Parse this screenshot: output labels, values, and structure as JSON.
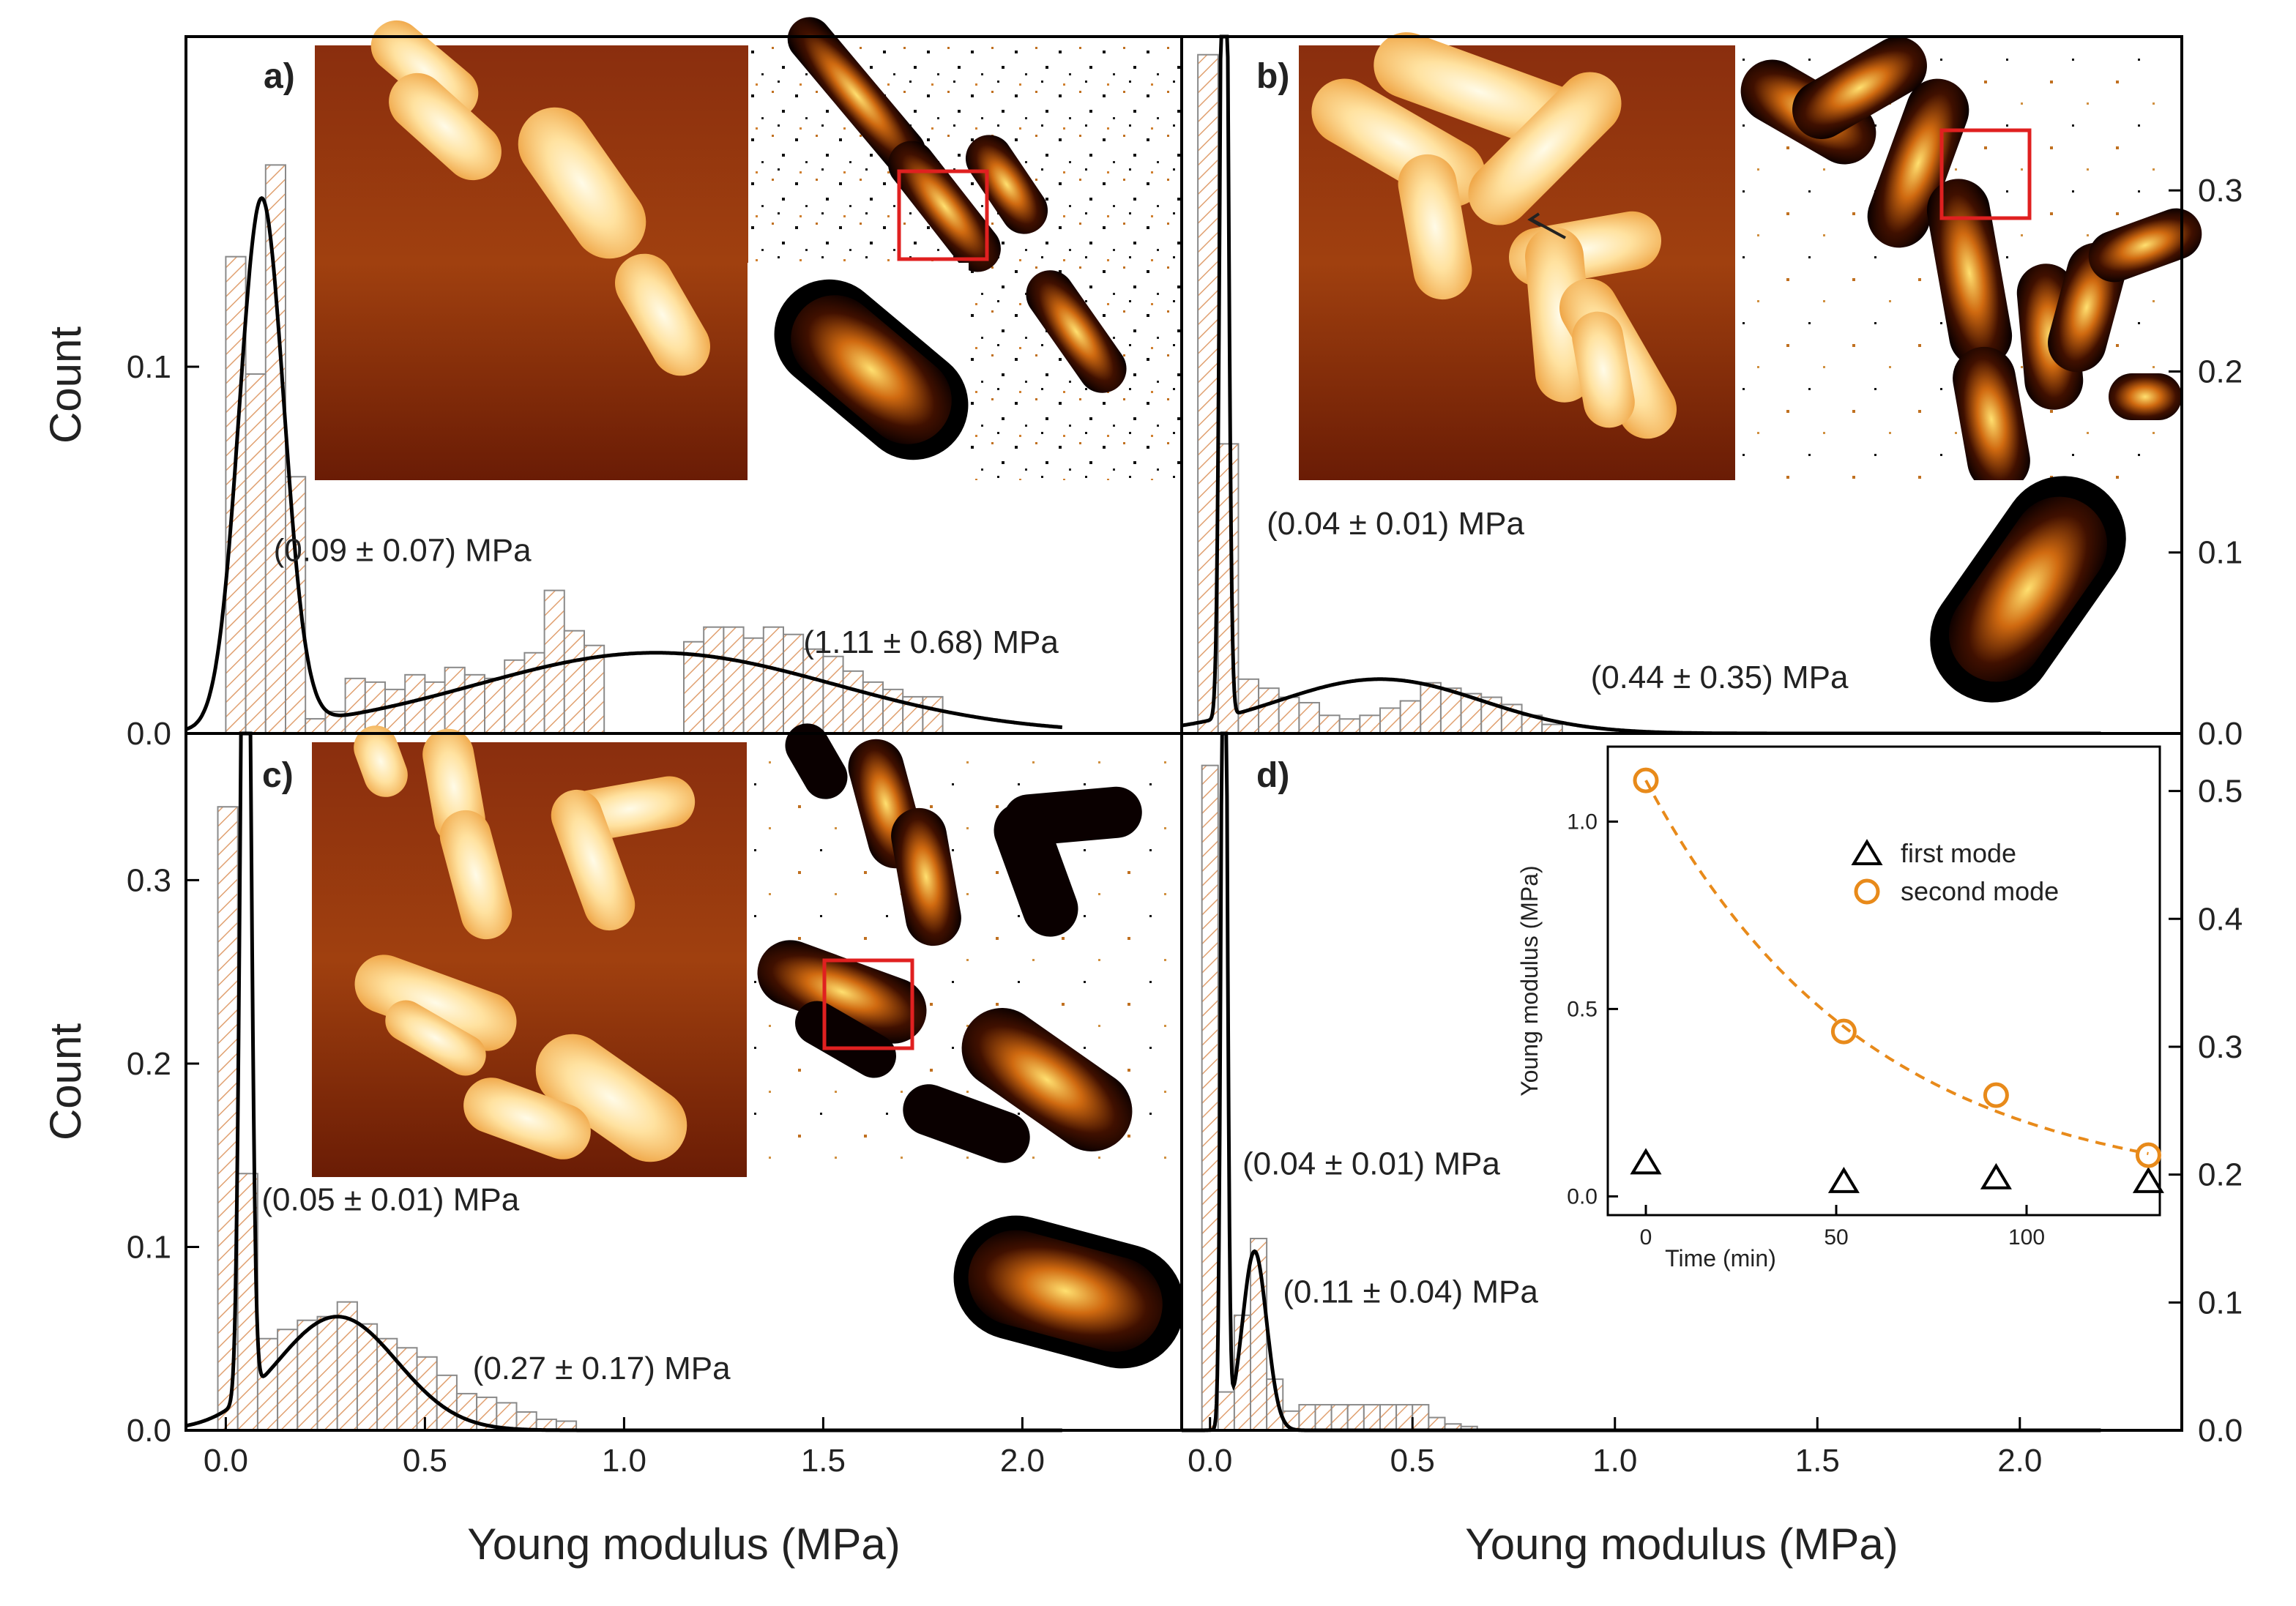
{
  "figure": {
    "xlabel": "Young modulus (MPa)",
    "ylabel": "Count"
  },
  "chart_data": [
    {
      "id": "a",
      "panel_label": "a)",
      "type": "bar",
      "title": "",
      "xlabel": "",
      "ylabel": "Count",
      "xlim": [
        -0.1,
        2.4
      ],
      "ylim": [
        0,
        0.19
      ],
      "yticks": [
        0.0,
        0.1
      ],
      "ytick_labels": [
        "0.0",
        "0.1"
      ],
      "ytick_side": "left",
      "xticks": [],
      "bin_width": 0.05,
      "bins": [
        0,
        0.05,
        0.1,
        0.15,
        0.2,
        0.25,
        0.3,
        0.35,
        0.4,
        0.45,
        0.5,
        0.55,
        0.6,
        0.65,
        0.7,
        0.75,
        0.8,
        0.85,
        0.9,
        0.95,
        1.0,
        1.05,
        1.1,
        1.15,
        1.2,
        1.25,
        1.3,
        1.35,
        1.4,
        1.45,
        1.5,
        1.55,
        1.6,
        1.65,
        1.7,
        1.75
      ],
      "values": [
        0.13,
        0.098,
        0.155,
        0.07,
        0.004,
        0.006,
        0.015,
        0.014,
        0.012,
        0.016,
        0.014,
        0.018,
        0.016,
        0.015,
        0.02,
        0.022,
        0.039,
        0.028,
        0.024,
        0.0,
        0.0,
        0.0,
        0.0,
        0.025,
        0.029,
        0.029,
        0.026,
        0.029,
        0.027,
        0.023,
        0.021,
        0.017,
        0.014,
        0.012,
        0.01,
        0.01
      ],
      "fit": [
        {
          "mu": 0.09,
          "sigma": 0.056,
          "amp": 0.144
        },
        {
          "mu": 1.08,
          "sigma": 0.45,
          "amp": 0.022
        }
      ],
      "annotations": [
        {
          "text": "(0.09 ± 0.07) MPa",
          "x": 0.12,
          "y": 0.047
        },
        {
          "text": "(1.11 ± 0.68) MPa",
          "x": 1.45,
          "y": 0.022
        }
      ]
    },
    {
      "id": "b",
      "panel_label": "b)",
      "type": "bar",
      "title": "",
      "xlabel": "",
      "ylabel": "",
      "xlim": [
        -0.07,
        2.4
      ],
      "ylim": [
        0,
        0.385
      ],
      "yticks": [
        0.0,
        0.1,
        0.2,
        0.3
      ],
      "ytick_labels": [
        "0.0",
        "0.1",
        "0.2",
        "0.3"
      ],
      "ytick_side": "right",
      "xticks": [],
      "bin_width": 0.05,
      "bins": [
        -0.03,
        0.02,
        0.07,
        0.12,
        0.17,
        0.22,
        0.27,
        0.32,
        0.37,
        0.42,
        0.47,
        0.52,
        0.57,
        0.62,
        0.67,
        0.72,
        0.77,
        0.82
      ],
      "values": [
        0.375,
        0.16,
        0.03,
        0.025,
        0.02,
        0.017,
        0.01,
        0.008,
        0.01,
        0.014,
        0.018,
        0.028,
        0.025,
        0.022,
        0.02,
        0.016,
        0.01,
        0.005
      ],
      "fit": [
        {
          "mu": 0.035,
          "sigma": 0.009,
          "amp": 0.6
        },
        {
          "mu": 0.42,
          "sigma": 0.25,
          "amp": 0.03
        }
      ],
      "annotations": [
        {
          "text": "(0.04 ± 0.01) MPa",
          "x": 0.14,
          "y": 0.11
        },
        {
          "text": "(0.44 ± 0.35) MPa",
          "x": 0.94,
          "y": 0.025
        }
      ]
    },
    {
      "id": "c",
      "panel_label": "c)",
      "type": "bar",
      "title": "",
      "xlabel": "Young modulus (MPa)",
      "ylabel": "Count",
      "xlim": [
        -0.1,
        2.4
      ],
      "ylim": [
        0,
        0.38
      ],
      "yticks": [
        0.0,
        0.1,
        0.2,
        0.3
      ],
      "ytick_labels": [
        "0.0",
        "0.1",
        "0.2",
        "0.3"
      ],
      "ytick_side": "left",
      "xticks": [
        0.0,
        0.5,
        1.0,
        1.5,
        2.0
      ],
      "xtick_labels": [
        "0.0",
        "0.5",
        "1.0",
        "1.5",
        "2.0"
      ],
      "bin_width": 0.05,
      "bins": [
        -0.02,
        0.03,
        0.08,
        0.13,
        0.18,
        0.23,
        0.28,
        0.33,
        0.38,
        0.43,
        0.48,
        0.53,
        0.58,
        0.63,
        0.68,
        0.73,
        0.78,
        0.83
      ],
      "values": [
        0.34,
        0.14,
        0.05,
        0.055,
        0.06,
        0.062,
        0.07,
        0.058,
        0.05,
        0.045,
        0.04,
        0.03,
        0.02,
        0.018,
        0.015,
        0.01,
        0.006,
        0.005
      ],
      "fit": [
        {
          "mu": 0.05,
          "sigma": 0.012,
          "amp": 0.6
        },
        {
          "mu": 0.28,
          "sigma": 0.15,
          "amp": 0.062
        }
      ],
      "annotations": [
        {
          "text": "(0.05 ± 0.01) MPa",
          "x": 0.09,
          "y": 0.12
        },
        {
          "text": "(0.27 ± 0.17) MPa",
          "x": 0.62,
          "y": 0.028
        }
      ]
    },
    {
      "id": "d",
      "panel_label": "d)",
      "type": "bar",
      "title": "",
      "xlabel": "Young modulus (MPa)",
      "ylabel": "",
      "xlim": [
        -0.07,
        2.4
      ],
      "ylim": [
        0,
        0.545
      ],
      "yticks": [
        0.0,
        0.1,
        0.2,
        0.3,
        0.4,
        0.5
      ],
      "ytick_labels": [
        "0.0",
        "0.1",
        "0.2",
        "0.3",
        "0.4",
        "0.5"
      ],
      "ytick_side": "right",
      "xticks": [
        0.0,
        0.5,
        1.0,
        1.5,
        2.0
      ],
      "xtick_labels": [
        "0.0",
        "0.5",
        "1.0",
        "1.5",
        "2.0"
      ],
      "bin_width": 0.04,
      "bins": [
        -0.02,
        0.02,
        0.06,
        0.1,
        0.14,
        0.18,
        0.22,
        0.26,
        0.3,
        0.34,
        0.38,
        0.42,
        0.46,
        0.5,
        0.54,
        0.58,
        0.62
      ],
      "values": [
        0.52,
        0.03,
        0.09,
        0.15,
        0.04,
        0.015,
        0.02,
        0.02,
        0.02,
        0.02,
        0.02,
        0.02,
        0.02,
        0.02,
        0.01,
        0.005,
        0.003
      ],
      "fit": [
        {
          "mu": 0.035,
          "sigma": 0.007,
          "amp": 0.8
        },
        {
          "mu": 0.11,
          "sigma": 0.03,
          "amp": 0.14
        }
      ],
      "annotations": [
        {
          "text": "(0.04 ± 0.01) MPa",
          "x": 0.08,
          "y": 0.2
        },
        {
          "text": "(0.11 ± 0.04) MPa",
          "x": 0.18,
          "y": 0.1
        }
      ]
    },
    {
      "id": "d-inset",
      "type": "scatter",
      "title": "",
      "xlabel": "Time (min)",
      "ylabel": "Young modulus (MPa)",
      "xlim": [
        -10,
        135
      ],
      "ylim": [
        -0.05,
        1.2
      ],
      "xticks": [
        0,
        50,
        100
      ],
      "xtick_labels": [
        "0",
        "50",
        "100"
      ],
      "yticks": [
        0.0,
        0.5,
        1.0
      ],
      "ytick_labels": [
        "0.0",
        "0.5",
        "1.0"
      ],
      "legend_position": "top-right",
      "series": [
        {
          "name": "first mode",
          "marker": "triangle",
          "color": "#000000",
          "x": [
            0,
            52,
            92,
            132
          ],
          "y": [
            0.09,
            0.04,
            0.05,
            0.04
          ]
        },
        {
          "name": "second mode",
          "marker": "circle",
          "color": "#e88a1a",
          "x": [
            0,
            52,
            92,
            132
          ],
          "y": [
            1.11,
            0.44,
            0.27,
            0.11
          ]
        }
      ],
      "fit_curve": {
        "style": "dashed",
        "color": "#e88a1a",
        "form": "exponential decay",
        "A": 1.11,
        "tau": 58
      }
    }
  ],
  "colors": {
    "bar_hatch": "#e0a070",
    "bar_edge": "#8a8a8a",
    "fit_line": "#000000",
    "highlight_box": "#e02020"
  }
}
